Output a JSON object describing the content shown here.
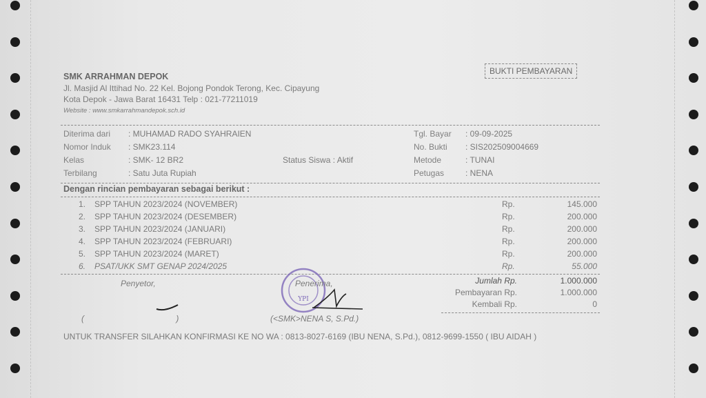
{
  "school": {
    "name": "SMK ARRAHMAN DEPOK",
    "address1": "Jl. Masjid Al Ittihad No. 22 Kel. Bojong Pondok Terong, Kec. Cipayung",
    "address2": "Kota Depok - Jawa Barat 16431 Telp : 021-77211019",
    "website": "Website : www.smkarrahmandepok.sch.id"
  },
  "doc_title": "BUKTI PEMBAYARAN",
  "info_left": [
    {
      "label": "Diterima dari",
      "value": ": MUHAMAD RADO SYAHRAIEN"
    },
    {
      "label": "Nomor Induk",
      "value": ": SMK23.114"
    },
    {
      "label": "Kelas",
      "value": ": SMK- 12 BR2"
    },
    {
      "label": "Terbilang",
      "value": ": Satu Juta Rupiah"
    }
  ],
  "status": "Status Siswa : Aktif",
  "info_right": [
    {
      "label": "Tgl. Bayar",
      "value": ": 09-09-2025"
    },
    {
      "label": "No. Bukti",
      "value": ": SIS202509004669"
    },
    {
      "label": "Metode",
      "value": ": TUNAI"
    },
    {
      "label": "Petugas",
      "value": ": NENA"
    }
  ],
  "details_heading": "Dengan rincian pembayaran sebagai berikut :",
  "items": [
    {
      "no": "1.",
      "desc": "SPP TAHUN 2023/2024 (NOVEMBER)",
      "cur": "Rp.",
      "amount": "145.000"
    },
    {
      "no": "2.",
      "desc": "SPP TAHUN 2023/2024 (DESEMBER)",
      "cur": "Rp.",
      "amount": "200.000"
    },
    {
      "no": "3.",
      "desc": "SPP TAHUN 2023/2024 (JANUARI)",
      "cur": "Rp.",
      "amount": "200.000"
    },
    {
      "no": "4.",
      "desc": "SPP TAHUN 2023/2024 (FEBRUARI)",
      "cur": "Rp.",
      "amount": "200.000"
    },
    {
      "no": "5.",
      "desc": "SPP TAHUN 2023/2024 (MARET)",
      "cur": "Rp.",
      "amount": "200.000"
    },
    {
      "no": "6.",
      "desc": "PSAT/UKK SMT GENAP 2024/2025",
      "cur": "Rp.",
      "amount": "55.000"
    }
  ],
  "signatures": {
    "payer_label": "Penyetor,",
    "payer_name": "(                                        )",
    "receiver_label": "Penerima,",
    "receiver_name": "(<SMK>NENA S, S.Pd.)",
    "stamp_text": "YPI ARRAHMAN"
  },
  "totals": [
    {
      "label": "Jumlah Rp.",
      "value": "1.000.000"
    },
    {
      "label": "Pembayaran Rp.",
      "value": "1.000.000"
    },
    {
      "label": "Kembali Rp.",
      "value": "0"
    }
  ],
  "footer": "UNTUK TRANSFER SILAHKAN KONFIRMASI KE NO WA : 0813-8027-6169 (IBU NENA, S.Pd.), 0812-9699-1550 ( IBU AIDAH )",
  "colors": {
    "paper": "#e8e8e8",
    "ink": "#7a7a7a",
    "stamp": "#7d68b8",
    "holes": "#1c1c1c"
  }
}
